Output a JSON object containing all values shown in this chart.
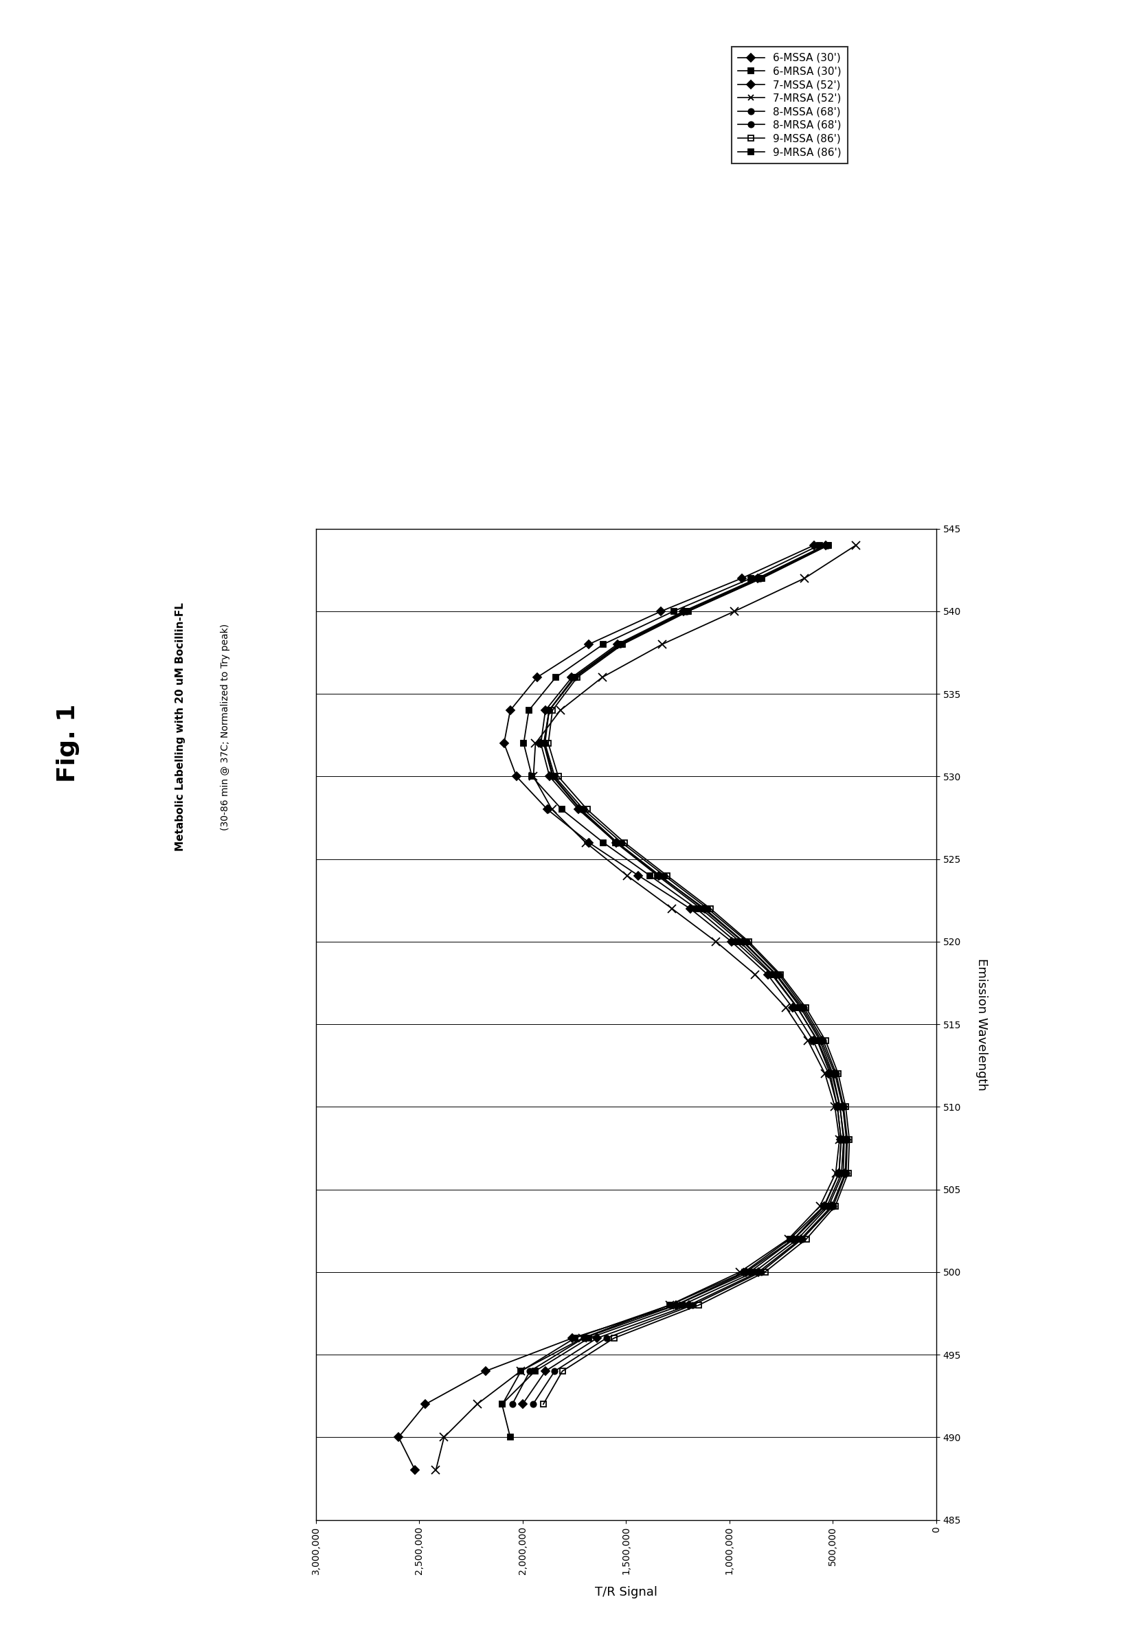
{
  "title": "Fig. 1",
  "subtitle1": "Metabolic Labelling with 20 uM Bocillin-FL",
  "subtitle2": "(30-86 min @ 37C; Normalized to Try peak)",
  "xlabel_bottom": "T/R Signal",
  "ylabel_right": "Emission Wavelength",
  "wave_min": 485,
  "wave_max": 545,
  "signal_min": 0,
  "signal_max": 3000000,
  "signal_ticks": [
    0,
    500000,
    1000000,
    1500000,
    2000000,
    2500000,
    3000000
  ],
  "signal_tick_labels": [
    "0",
    "500,000",
    "1,000,000",
    "1,500,000",
    "2,000,000",
    "2,500,000",
    "3,000,000"
  ],
  "wave_ticks": [
    485,
    490,
    495,
    500,
    505,
    510,
    515,
    520,
    525,
    530,
    535,
    540,
    545
  ],
  "series": [
    {
      "label": "6-MSSA (30')",
      "marker": "D",
      "markersize": 6,
      "linestyle": "-",
      "color": "black",
      "fillstyle": "full",
      "wave": [
        488,
        490,
        492,
        494,
        496,
        498,
        500,
        502,
        504,
        506,
        508,
        510,
        512,
        514,
        516,
        518,
        520,
        522,
        524,
        526,
        528,
        530,
        532,
        534,
        536,
        538,
        540,
        542,
        544
      ],
      "signal": [
        2520000,
        2600000,
        2470000,
        2180000,
        1760000,
        1260000,
        920000,
        690000,
        540000,
        470000,
        460000,
        478000,
        520000,
        595000,
        695000,
        815000,
        990000,
        1190000,
        1440000,
        1680000,
        1880000,
        2030000,
        2090000,
        2060000,
        1930000,
        1680000,
        1330000,
        940000,
        590000
      ]
    },
    {
      "label": "6-MRSA (30')",
      "marker": "s",
      "markersize": 6,
      "linestyle": "-",
      "color": "black",
      "fillstyle": "full",
      "wave": [
        490,
        492,
        494,
        496,
        498,
        500,
        502,
        504,
        506,
        508,
        510,
        512,
        514,
        516,
        518,
        520,
        522,
        524,
        526,
        528,
        530,
        532,
        534,
        536,
        538,
        540,
        542,
        544
      ],
      "signal": [
        2060000,
        2100000,
        1940000,
        1680000,
        1230000,
        880000,
        670000,
        520000,
        450000,
        445000,
        466000,
        505000,
        572000,
        672000,
        795000,
        970000,
        1160000,
        1385000,
        1610000,
        1810000,
        1955000,
        1995000,
        1970000,
        1840000,
        1610000,
        1270000,
        895000,
        565000
      ]
    },
    {
      "label": "7-MSSA (52')",
      "marker": "D",
      "markersize": 6,
      "linestyle": "-",
      "color": "black",
      "fillstyle": "full",
      "wave": [
        492,
        494,
        496,
        498,
        500,
        502,
        504,
        506,
        508,
        510,
        512,
        514,
        516,
        518,
        520,
        522,
        524,
        526,
        528,
        530,
        532,
        534,
        536,
        538,
        540,
        542,
        544
      ],
      "signal": [
        2000000,
        1890000,
        1640000,
        1195000,
        860000,
        655000,
        505000,
        440000,
        434000,
        452000,
        490000,
        555000,
        648000,
        772000,
        932000,
        1120000,
        1340000,
        1548000,
        1730000,
        1870000,
        1912000,
        1890000,
        1762000,
        1542000,
        1222000,
        864000,
        536000
      ]
    },
    {
      "label": "7-MRSA (52')",
      "marker": "x",
      "markersize": 8,
      "linestyle": "-",
      "color": "black",
      "fillstyle": "full",
      "wave": [
        488,
        490,
        492,
        494,
        496,
        498,
        500,
        502,
        504,
        506,
        508,
        510,
        512,
        514,
        516,
        518,
        520,
        522,
        524,
        526,
        528,
        530,
        532,
        534,
        536,
        538,
        540,
        542,
        544
      ],
      "signal": [
        2420000,
        2380000,
        2220000,
        2010000,
        1710000,
        1290000,
        950000,
        715000,
        562000,
        486000,
        468000,
        490000,
        538000,
        620000,
        726000,
        875000,
        1065000,
        1278000,
        1495000,
        1695000,
        1858000,
        1948000,
        1938000,
        1818000,
        1615000,
        1325000,
        975000,
        636000,
        388000
      ]
    },
    {
      "label": "8-MSSA (68')",
      "marker": "o",
      "markersize": 6,
      "linestyle": "-",
      "color": "black",
      "fillstyle": "full",
      "wave": [
        492,
        494,
        496,
        498,
        500,
        502,
        504,
        506,
        508,
        510,
        512,
        514,
        516,
        518,
        520,
        522,
        524,
        526,
        528,
        530,
        532,
        534,
        536,
        538,
        540,
        542,
        544
      ],
      "signal": [
        1950000,
        1845000,
        1595000,
        1178000,
        848000,
        648000,
        498000,
        436000,
        430000,
        448000,
        484000,
        546000,
        640000,
        760000,
        915000,
        1105000,
        1315000,
        1522000,
        1705000,
        1845000,
        1892000,
        1872000,
        1752000,
        1532000,
        1212000,
        856000,
        530000
      ]
    },
    {
      "label": "8-MRSA (68')",
      "marker": "o",
      "markersize": 6,
      "linestyle": "-",
      "color": "black",
      "fillstyle": "full",
      "wave": [
        492,
        494,
        496,
        498,
        500,
        502,
        504,
        506,
        508,
        510,
        512,
        514,
        516,
        518,
        520,
        522,
        524,
        526,
        528,
        530,
        532,
        534,
        536,
        538,
        540,
        542,
        544
      ],
      "signal": [
        2050000,
        1965000,
        1705000,
        1258000,
        902000,
        688000,
        528000,
        458000,
        448000,
        465000,
        500000,
        562000,
        656000,
        776000,
        936000,
        1126000,
        1336000,
        1542000,
        1718000,
        1852000,
        1896000,
        1872000,
        1748000,
        1526000,
        1206000,
        850000,
        526000
      ]
    },
    {
      "label": "9-MSSA (86')",
      "marker": "s",
      "markersize": 6,
      "linestyle": "-",
      "color": "black",
      "fillstyle": "none",
      "wave": [
        492,
        494,
        496,
        498,
        500,
        502,
        504,
        506,
        508,
        510,
        512,
        514,
        516,
        518,
        520,
        522,
        524,
        526,
        528,
        530,
        532,
        534,
        536,
        538,
        540,
        542,
        544
      ],
      "signal": [
        1900000,
        1808000,
        1558000,
        1148000,
        828000,
        628000,
        488000,
        426000,
        420000,
        438000,
        474000,
        535000,
        630000,
        752000,
        906000,
        1092000,
        1302000,
        1508000,
        1688000,
        1828000,
        1876000,
        1856000,
        1736000,
        1516000,
        1198000,
        842000,
        521000
      ]
    },
    {
      "label": "9-MRSA (86')",
      "marker": "s",
      "markersize": 6,
      "linestyle": "-",
      "color": "black",
      "fillstyle": "full",
      "wave": [
        492,
        494,
        496,
        498,
        500,
        502,
        504,
        506,
        508,
        510,
        512,
        514,
        516,
        518,
        520,
        522,
        524,
        526,
        528,
        530,
        532,
        534,
        536,
        538,
        540,
        542,
        544
      ],
      "signal": [
        2098000,
        2008000,
        1748000,
        1288000,
        928000,
        708000,
        543000,
        470000,
        460000,
        478000,
        513000,
        575000,
        670000,
        790000,
        950000,
        1138000,
        1348000,
        1550000,
        1722000,
        1856000,
        1898000,
        1872000,
        1746000,
        1524000,
        1203000,
        848000,
        524000
      ]
    }
  ]
}
